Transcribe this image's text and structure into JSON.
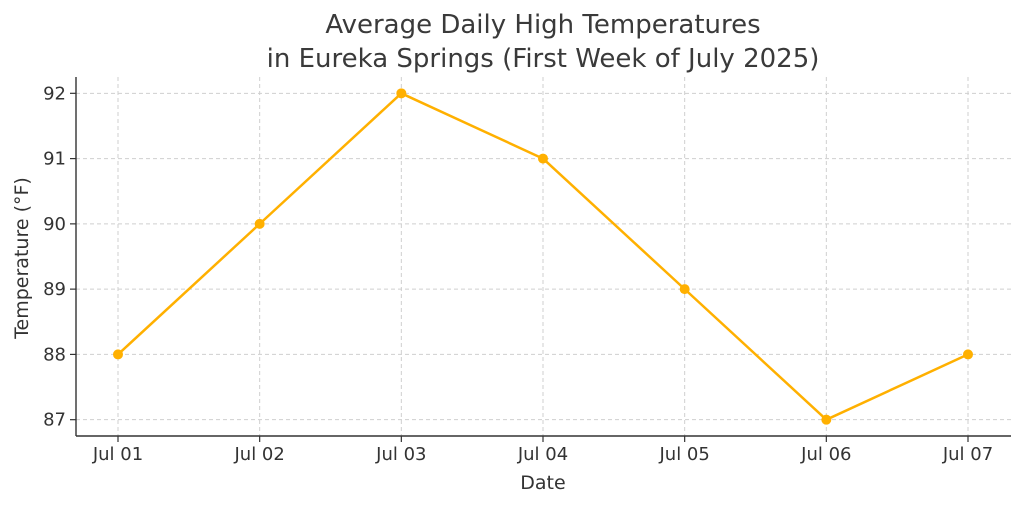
{
  "chart_data": {
    "type": "line",
    "title_lines": [
      "Average Daily High Temperatures",
      "in Eureka Springs (First Week of July 2025)"
    ],
    "xlabel": "Date",
    "ylabel": "Temperature (°F)",
    "categories": [
      "Jul 01",
      "Jul 02",
      "Jul 03",
      "Jul 04",
      "Jul 05",
      "Jul 06",
      "Jul 07"
    ],
    "series": [
      {
        "name": "Average Daily High",
        "values": [
          88,
          90,
          92,
          91,
          89,
          87,
          88
        ],
        "color": "#FFB000"
      }
    ],
    "yticks": [
      87,
      88,
      89,
      90,
      91,
      92
    ],
    "ylim": [
      86.75,
      92.25
    ],
    "grid": true,
    "legend": "none"
  }
}
